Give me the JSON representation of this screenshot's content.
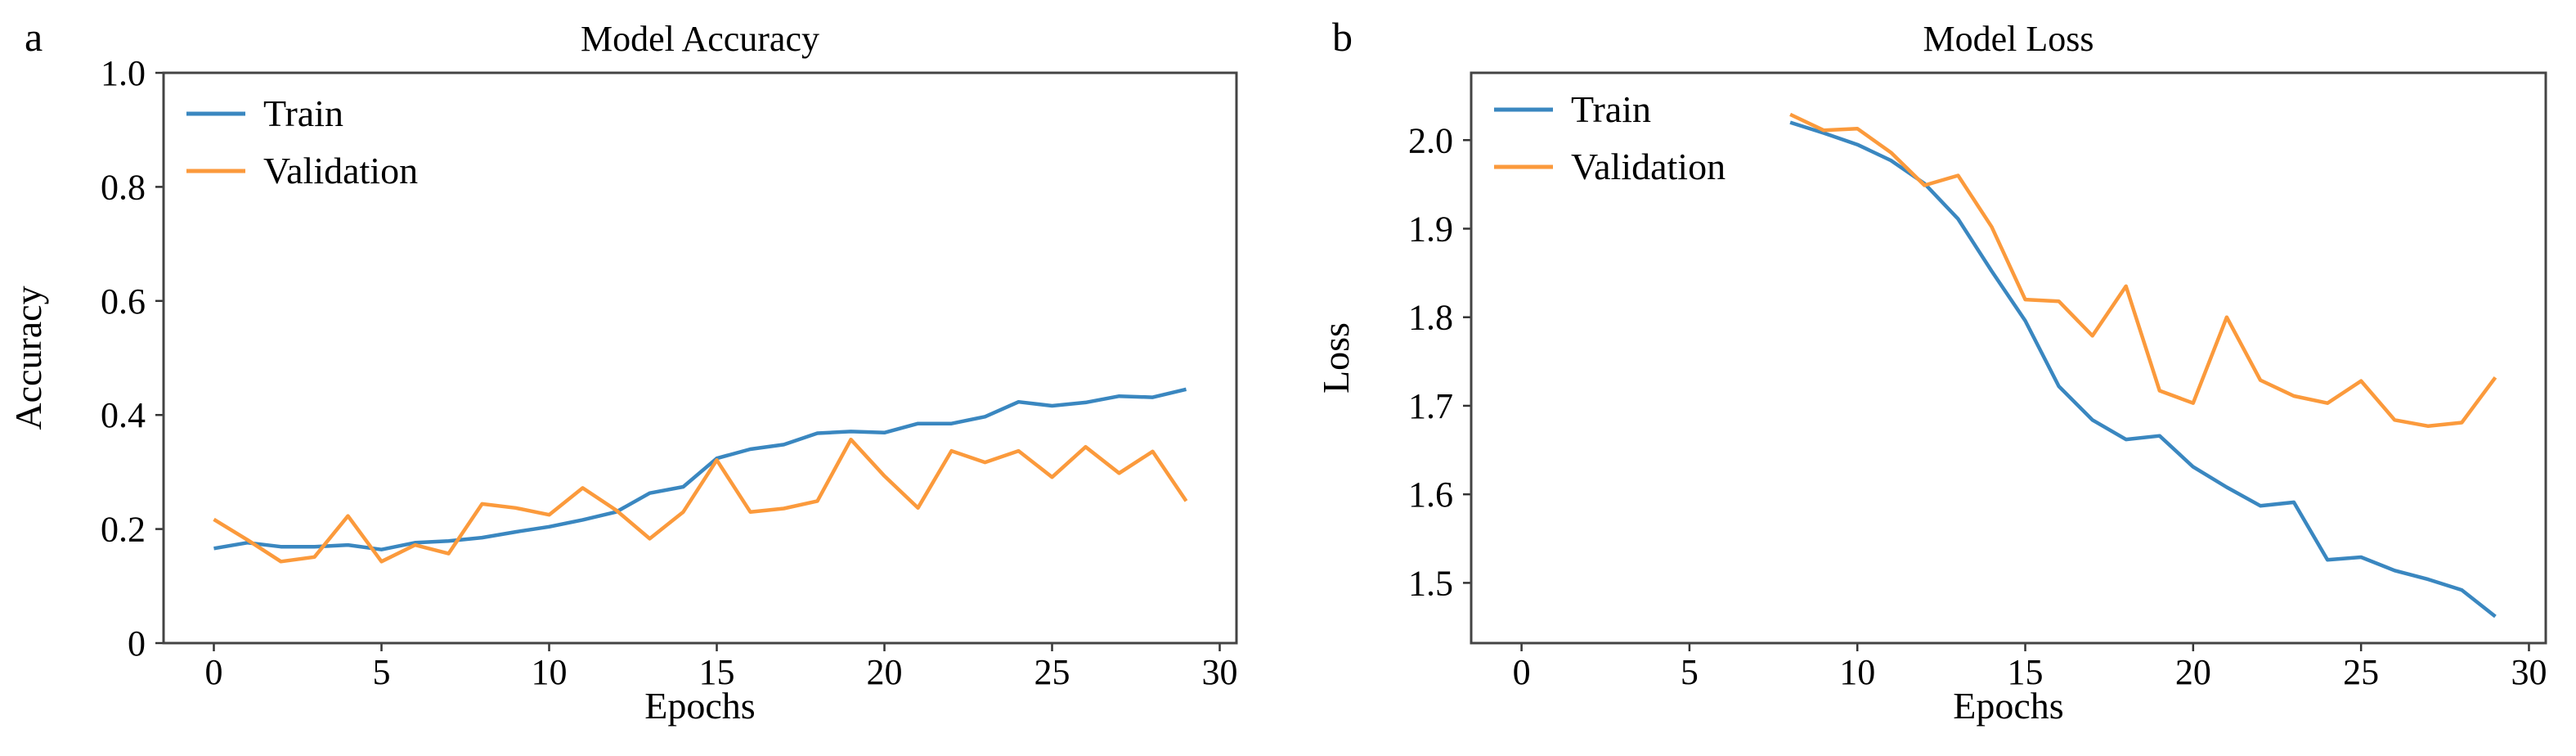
{
  "chart_data": [
    {
      "type": "line",
      "panel_label": "a",
      "title": "Model Accuracy",
      "xlabel": "Epochs",
      "ylabel": "Accuracy",
      "xlim": [
        -1.5,
        30.5
      ],
      "ylim": [
        0,
        1.0
      ],
      "xticks": [
        0,
        5,
        10,
        15,
        20,
        25,
        30
      ],
      "yticks": [
        0,
        0.2,
        0.4,
        0.6,
        0.8,
        1.0
      ],
      "ytick_labels": [
        "0",
        "0.2",
        "0.4",
        "0.6",
        "0.8",
        "1.0"
      ],
      "grid": false,
      "legend_position": "top-left",
      "x": [
        0,
        1,
        2,
        3,
        4,
        5,
        6,
        7,
        8,
        9,
        10,
        11,
        12,
        13,
        14,
        15,
        16,
        17,
        18,
        19,
        20,
        21,
        22,
        23,
        24,
        25,
        26,
        27,
        28,
        29
      ],
      "series": [
        {
          "name": "Train",
          "color": "#3a87c0",
          "values": [
            0.166,
            0.176,
            0.169,
            0.169,
            0.172,
            0.164,
            0.176,
            0.179,
            0.185,
            0.195,
            0.204,
            0.216,
            0.23,
            0.263,
            0.274,
            0.324,
            0.34,
            0.348,
            0.368,
            0.371,
            0.369,
            0.385,
            0.385,
            0.397,
            0.423,
            0.416,
            0.422,
            0.433,
            0.431,
            0.445
          ]
        },
        {
          "name": "Validation",
          "color": "#fb9a3c",
          "values": [
            0.217,
            0.181,
            0.143,
            0.151,
            0.223,
            0.143,
            0.172,
            0.157,
            0.244,
            0.237,
            0.225,
            0.272,
            0.233,
            0.183,
            0.23,
            0.321,
            0.23,
            0.236,
            0.249,
            0.357,
            0.293,
            0.237,
            0.337,
            0.317,
            0.337,
            0.291,
            0.344,
            0.298,
            0.336,
            0.249
          ]
        }
      ]
    },
    {
      "type": "line",
      "panel_label": "b",
      "title": "Model Loss",
      "xlabel": "Epochs",
      "ylabel": "Loss",
      "xlim": [
        -1.5,
        30.5
      ],
      "ylim": [
        1.432,
        2.076
      ],
      "xticks": [
        0,
        5,
        10,
        15,
        20,
        25,
        30
      ],
      "yticks": [
        1.5,
        1.6,
        1.7,
        1.8,
        1.9,
        2.0
      ],
      "ytick_labels": [
        "1.5",
        "1.6",
        "1.7",
        "1.8",
        "1.9",
        "2.0"
      ],
      "grid": false,
      "legend_position": "top-left",
      "x": [
        8,
        9,
        10,
        11,
        12,
        13,
        14,
        15,
        16,
        17,
        18,
        19,
        20,
        21,
        22,
        23,
        24,
        25,
        26,
        27,
        28,
        29
      ],
      "series": [
        {
          "name": "Train",
          "color": "#3a87c0",
          "values": [
            2.02,
            2.008,
            1.995,
            1.977,
            1.951,
            1.911,
            1.852,
            1.796,
            1.722,
            1.684,
            1.662,
            1.666,
            1.631,
            1.608,
            1.587,
            1.591,
            1.526,
            1.529,
            1.514,
            1.504,
            1.492,
            1.462
          ]
        },
        {
          "name": "Validation",
          "color": "#fb9a3c",
          "values": [
            2.029,
            2.011,
            2.013,
            1.986,
            1.949,
            1.96,
            1.902,
            1.82,
            1.818,
            1.779,
            1.835,
            1.717,
            1.703,
            1.8,
            1.729,
            1.711,
            1.703,
            1.728,
            1.684,
            1.677,
            1.681,
            1.732
          ]
        }
      ]
    }
  ]
}
